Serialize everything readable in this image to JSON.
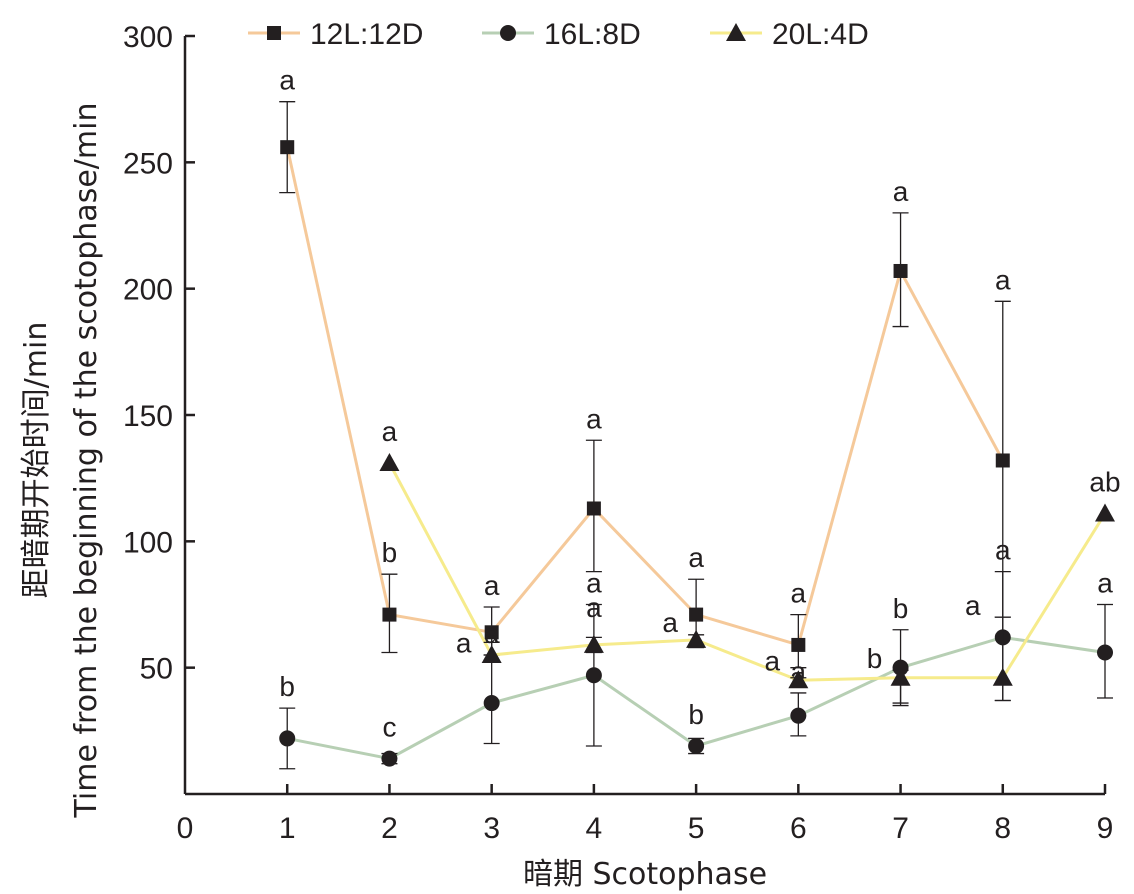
{
  "chart_data": {
    "type": "line",
    "title": "",
    "xlabel": "暗期 Scotophase",
    "ylabel": "距暗期开始时间/min",
    "ylabel_en": "Time from the beginning of the scotophase/min",
    "xlim": [
      0,
      9
    ],
    "ylim": [
      0,
      300
    ],
    "xticks": [
      0,
      1,
      2,
      3,
      4,
      5,
      6,
      7,
      8,
      9
    ],
    "yticks": [
      50,
      100,
      150,
      200,
      250,
      300
    ],
    "grid": false,
    "legend_position": "top",
    "series": [
      {
        "name": "12L:12D",
        "color": "#f5c99a",
        "marker": "square",
        "x": [
          1,
          2,
          3,
          4,
          5,
          6,
          7,
          8
        ],
        "y": [
          256,
          71,
          64,
          113,
          71,
          59,
          207,
          132
        ],
        "err_upper": [
          274,
          87,
          74,
          140,
          85,
          71,
          230,
          195
        ],
        "err_lower": [
          238,
          56,
          55,
          88,
          58,
          50,
          185,
          70
        ],
        "labels": [
          "a",
          "b",
          "a",
          "a",
          "a",
          "a",
          "a",
          "a"
        ]
      },
      {
        "name": "16L:8D",
        "color": "#b7cfb4",
        "marker": "circle",
        "x": [
          1,
          2,
          3,
          4,
          5,
          6,
          7,
          8,
          9
        ],
        "y": [
          22,
          14,
          36,
          47,
          19,
          31,
          50,
          62,
          56
        ],
        "err_upper": [
          34,
          16,
          55,
          75,
          22,
          40,
          65,
          88,
          75
        ],
        "err_lower": [
          10,
          12,
          20,
          19,
          16,
          23,
          36,
          37,
          38
        ],
        "labels": [
          "b",
          "c",
          "a",
          "a",
          "b",
          "a",
          "b",
          "a",
          "a"
        ]
      },
      {
        "name": "20L:4D",
        "color": "#f6eb8c",
        "marker": "triangle",
        "x": [
          2,
          3,
          4,
          5,
          6,
          7,
          8,
          9
        ],
        "y": [
          131,
          55,
          59,
          61,
          45,
          46,
          46,
          111
        ],
        "err_upper": [
          131,
          60,
          62,
          63,
          46,
          49,
          70,
          111
        ],
        "err_lower": [
          131,
          53,
          56,
          58,
          43,
          35,
          37,
          111
        ],
        "labels": [
          "a",
          "a",
          "a",
          "a",
          "a",
          "b",
          "a",
          "ab"
        ]
      }
    ]
  }
}
